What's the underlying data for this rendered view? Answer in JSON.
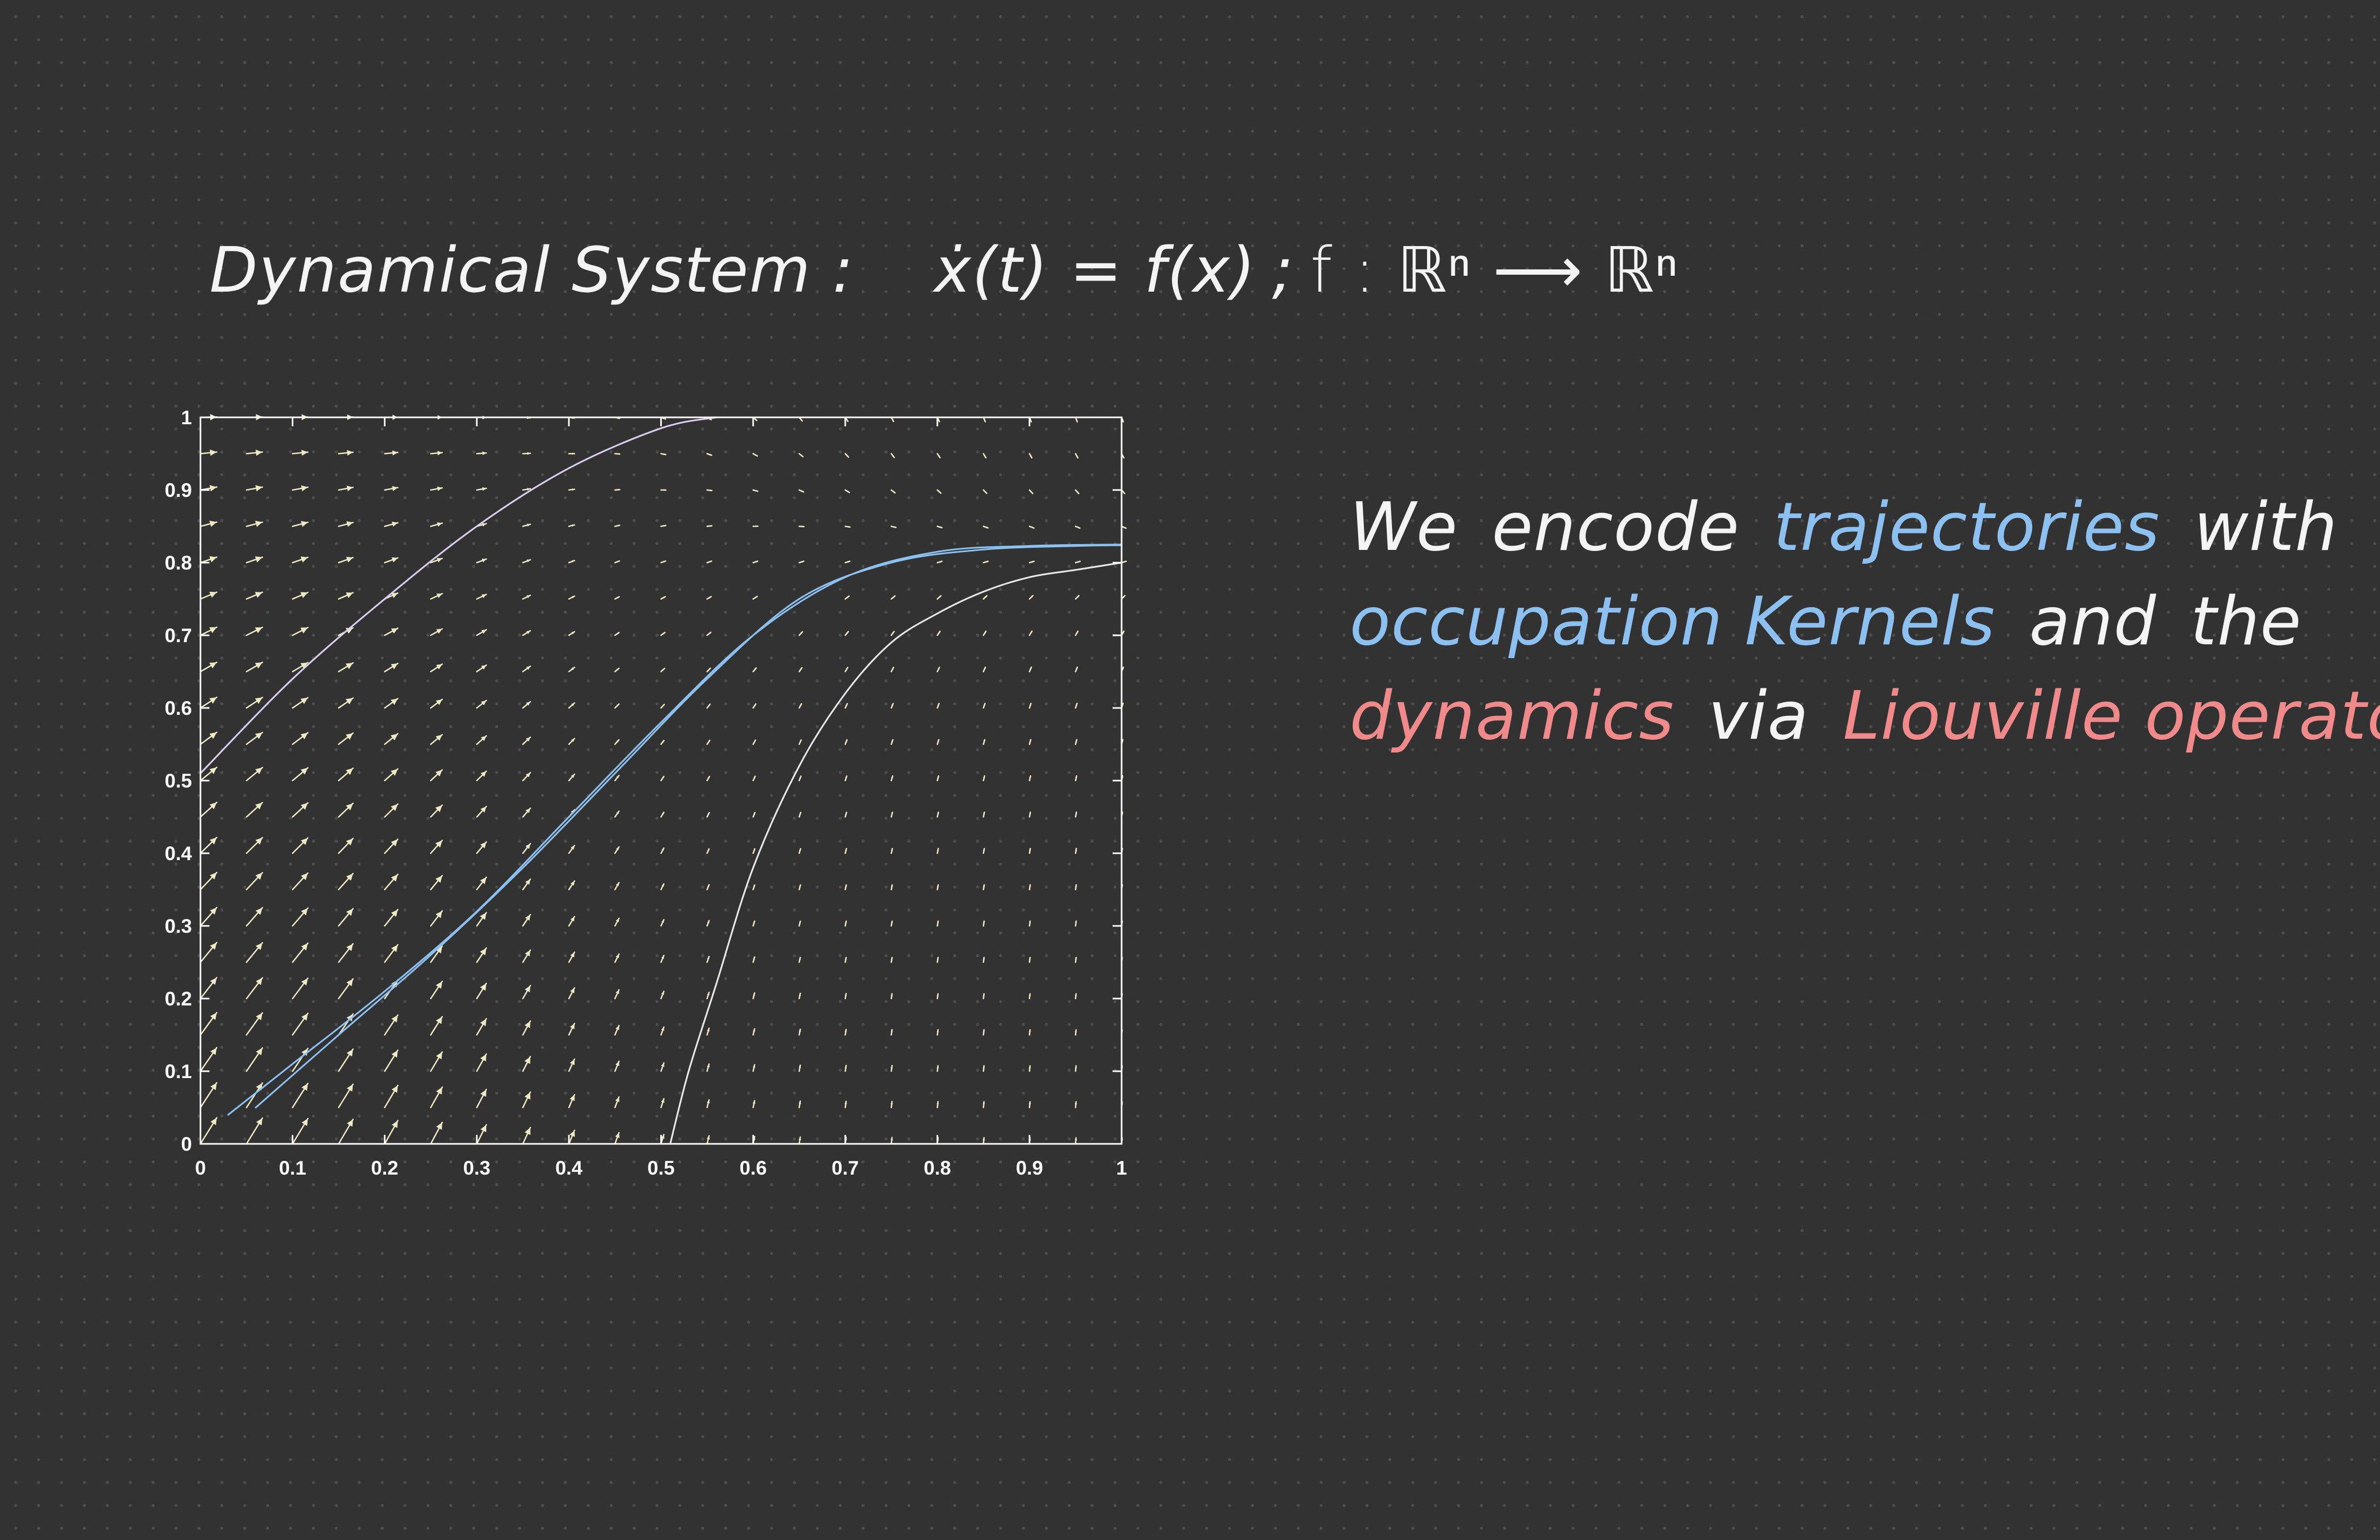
{
  "header": {
    "label": "Dynamical System :",
    "equation": "ẋ(t) = f(x)",
    "separator": ";",
    "mapping": "f : ℝⁿ ⟶ ℝⁿ"
  },
  "caption": {
    "line1": {
      "w1": "We",
      "w2": "encode",
      "w3": "trajectories",
      "w4": "with"
    },
    "line2": {
      "w1": "occupation Kernels",
      "w2": "and",
      "w3": "the"
    },
    "line3": {
      "w1": "dynamics",
      "w2": "via",
      "w3": "Liouville operators."
    }
  },
  "colors": {
    "background": "#323232",
    "arrow": "#efe9c4",
    "trajectory_blue": "#8cc0f0",
    "trajectory_white": "#e8e8e8",
    "accent_red": "#f08a8a"
  },
  "chart_data": {
    "type": "quiver",
    "title": "",
    "xlabel": "",
    "ylabel": "",
    "xlim": [
      0,
      1
    ],
    "ylim": [
      0,
      1
    ],
    "xticks": [
      "0",
      "0.1",
      "0.2",
      "0.3",
      "0.4",
      "0.5",
      "0.6",
      "0.7",
      "0.8",
      "0.9",
      "1"
    ],
    "yticks": [
      "0",
      "0.1",
      "0.2",
      "0.3",
      "0.4",
      "0.5",
      "0.6",
      "0.7",
      "0.8",
      "0.9",
      "1"
    ],
    "grid": false,
    "vector_field": {
      "nx": 21,
      "ny": 21,
      "x_range": [
        0,
        1
      ],
      "y_range": [
        0,
        1
      ]
    },
    "trajectories": [
      {
        "color": "lavender",
        "points": [
          [
            0,
            0.51
          ],
          [
            0.1,
            0.64
          ],
          [
            0.2,
            0.75
          ],
          [
            0.3,
            0.85
          ],
          [
            0.4,
            0.93
          ],
          [
            0.5,
            0.985
          ],
          [
            0.56,
            1.0
          ]
        ]
      },
      {
        "color": "blue",
        "points": [
          [
            0.03,
            0.04
          ],
          [
            0.1,
            0.11
          ],
          [
            0.2,
            0.21
          ],
          [
            0.3,
            0.32
          ],
          [
            0.4,
            0.45
          ],
          [
            0.5,
            0.58
          ],
          [
            0.6,
            0.7
          ],
          [
            0.7,
            0.78
          ],
          [
            0.8,
            0.815
          ],
          [
            0.9,
            0.823
          ],
          [
            1,
            0.825
          ]
        ]
      },
      {
        "color": "blue",
        "points": [
          [
            0.06,
            0.05
          ],
          [
            0.15,
            0.15
          ],
          [
            0.25,
            0.26
          ],
          [
            0.35,
            0.38
          ],
          [
            0.45,
            0.51
          ],
          [
            0.55,
            0.64
          ],
          [
            0.65,
            0.75
          ],
          [
            0.75,
            0.8
          ],
          [
            0.85,
            0.818
          ],
          [
            0.95,
            0.823
          ],
          [
            1,
            0.824
          ]
        ]
      },
      {
        "color": "white",
        "points": [
          [
            0.51,
            0.0
          ],
          [
            0.53,
            0.1
          ],
          [
            0.56,
            0.22
          ],
          [
            0.6,
            0.38
          ],
          [
            0.65,
            0.52
          ],
          [
            0.7,
            0.62
          ],
          [
            0.75,
            0.69
          ],
          [
            0.8,
            0.73
          ],
          [
            0.85,
            0.76
          ],
          [
            0.9,
            0.78
          ],
          [
            0.95,
            0.79
          ],
          [
            1,
            0.8
          ]
        ]
      }
    ]
  }
}
